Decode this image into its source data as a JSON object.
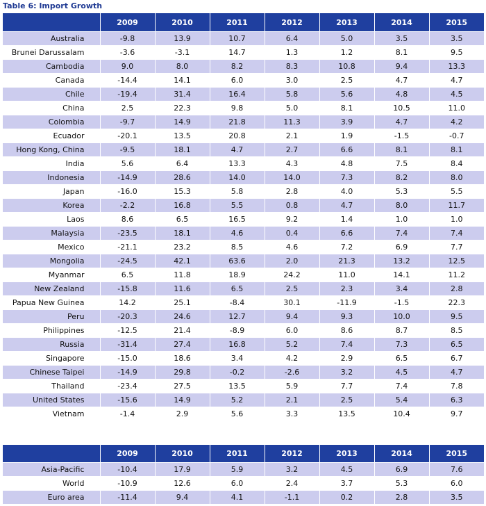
{
  "caption": "Table 6: Import Growth",
  "years": [
    "2009",
    "2010",
    "2011",
    "2012",
    "2013",
    "2014",
    "2015"
  ],
  "economies": [
    {
      "name": "Australia",
      "values": [
        "-9.8",
        "13.9",
        "10.7",
        "6.4",
        "5.0",
        "3.5",
        "3.5"
      ]
    },
    {
      "name": "Brunei Darussalam",
      "values": [
        "-3.6",
        "-3.1",
        "14.7",
        "1.3",
        "1.2",
        "8.1",
        "9.5"
      ]
    },
    {
      "name": "Cambodia",
      "values": [
        "9.0",
        "8.0",
        "8.2",
        "8.3",
        "10.8",
        "9.4",
        "13.3"
      ]
    },
    {
      "name": "Canada",
      "values": [
        "-14.4",
        "14.1",
        "6.0",
        "3.0",
        "2.5",
        "4.7",
        "4.7"
      ]
    },
    {
      "name": "Chile",
      "values": [
        "-19.4",
        "31.4",
        "16.4",
        "5.8",
        "5.6",
        "4.8",
        "4.5"
      ]
    },
    {
      "name": "China",
      "values": [
        "2.5",
        "22.3",
        "9.8",
        "5.0",
        "8.1",
        "10.5",
        "11.0"
      ]
    },
    {
      "name": "Colombia",
      "values": [
        "-9.7",
        "14.9",
        "21.8",
        "11.3",
        "3.9",
        "4.7",
        "4.2"
      ]
    },
    {
      "name": "Ecuador",
      "values": [
        "-20.1",
        "13.5",
        "20.8",
        "2.1",
        "1.9",
        "-1.5",
        "-0.7"
      ]
    },
    {
      "name": "Hong Kong, China",
      "values": [
        "-9.5",
        "18.1",
        "4.7",
        "2.7",
        "6.6",
        "8.1",
        "8.1"
      ]
    },
    {
      "name": "India",
      "values": [
        "5.6",
        "6.4",
        "13.3",
        "4.3",
        "4.8",
        "7.5",
        "8.4"
      ]
    },
    {
      "name": "Indonesia",
      "values": [
        "-14.9",
        "28.6",
        "14.0",
        "14.0",
        "7.3",
        "8.2",
        "8.0"
      ]
    },
    {
      "name": "Japan",
      "values": [
        "-16.0",
        "15.3",
        "5.8",
        "2.8",
        "4.0",
        "5.3",
        "5.5"
      ]
    },
    {
      "name": "Korea",
      "values": [
        "-2.2",
        "16.8",
        "5.5",
        "0.8",
        "4.7",
        "8.0",
        "11.7"
      ]
    },
    {
      "name": "Laos",
      "values": [
        "8.6",
        "6.5",
        "16.5",
        "9.2",
        "1.4",
        "1.0",
        "1.0"
      ]
    },
    {
      "name": "Malaysia",
      "values": [
        "-23.5",
        "18.1",
        "4.6",
        "0.4",
        "6.6",
        "7.4",
        "7.4"
      ]
    },
    {
      "name": "Mexico",
      "values": [
        "-21.1",
        "23.2",
        "8.5",
        "4.6",
        "7.2",
        "6.9",
        "7.7"
      ]
    },
    {
      "name": "Mongolia",
      "values": [
        "-24.5",
        "42.1",
        "63.6",
        "2.0",
        "21.3",
        "13.2",
        "12.5"
      ]
    },
    {
      "name": "Myanmar",
      "values": [
        "6.5",
        "11.8",
        "18.9",
        "24.2",
        "11.0",
        "14.1",
        "11.2"
      ]
    },
    {
      "name": "New Zealand",
      "values": [
        "-15.8",
        "11.6",
        "6.5",
        "2.5",
        "2.3",
        "3.4",
        "2.8"
      ]
    },
    {
      "name": "Papua New Guinea",
      "values": [
        "14.2",
        "25.1",
        "-8.4",
        "30.1",
        "-11.9",
        "-1.5",
        "22.3"
      ]
    },
    {
      "name": "Peru",
      "values": [
        "-20.3",
        "24.6",
        "12.7",
        "9.4",
        "9.3",
        "10.0",
        "9.5"
      ]
    },
    {
      "name": "Philippines",
      "values": [
        "-12.5",
        "21.4",
        "-8.9",
        "6.0",
        "8.6",
        "8.7",
        "8.5"
      ]
    },
    {
      "name": "Russia",
      "values": [
        "-31.4",
        "27.4",
        "16.8",
        "5.2",
        "7.4",
        "7.3",
        "6.5"
      ]
    },
    {
      "name": "Singapore",
      "values": [
        "-15.0",
        "18.6",
        "3.4",
        "4.2",
        "2.9",
        "6.5",
        "6.7"
      ]
    },
    {
      "name": "Chinese Taipei",
      "values": [
        "-14.9",
        "29.8",
        "-0.2",
        "-2.6",
        "3.2",
        "4.5",
        "4.7"
      ]
    },
    {
      "name": "Thailand",
      "values": [
        "-23.4",
        "27.5",
        "13.5",
        "5.9",
        "7.7",
        "7.4",
        "7.8"
      ]
    },
    {
      "name": "United States",
      "values": [
        "-15.6",
        "14.9",
        "5.2",
        "2.1",
        "2.5",
        "5.4",
        "6.3"
      ]
    },
    {
      "name": "Vietnam",
      "values": [
        "-1.4",
        "2.9",
        "5.6",
        "3.3",
        "13.5",
        "10.4",
        "9.7"
      ]
    }
  ],
  "aggregates": [
    {
      "name": "Asia-Pacific",
      "values": [
        "-10.4",
        "17.9",
        "5.9",
        "3.2",
        "4.5",
        "6.9",
        "7.6"
      ]
    },
    {
      "name": "World",
      "values": [
        "-10.9",
        "12.6",
        "6.0",
        "2.4",
        "3.7",
        "5.3",
        "6.0"
      ]
    },
    {
      "name": "Euro area",
      "values": [
        "-11.4",
        "9.4",
        "4.1",
        "-1.1",
        "0.2",
        "2.8",
        "3.5"
      ]
    }
  ],
  "colors": {
    "header_bg": "#1f3f9f",
    "band": "#ccccee",
    "caption": "#1f3a93"
  }
}
